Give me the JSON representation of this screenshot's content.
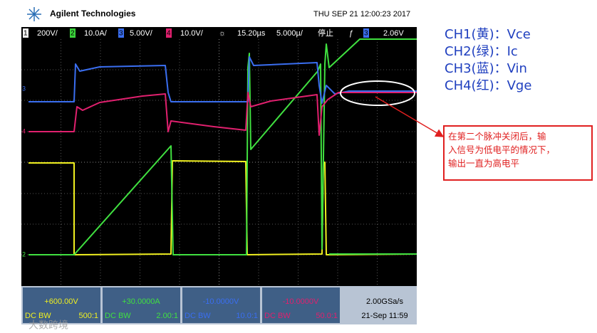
{
  "header": {
    "brand": "Agilent Technologies",
    "timestamp": "THU SEP 21 12:00:23 2017"
  },
  "toolbar": {
    "ch1": {
      "num": "1",
      "scale": "200V/"
    },
    "ch2": {
      "num": "2",
      "scale": "10.0A/"
    },
    "ch3": {
      "num": "3",
      "scale": "5.00V/"
    },
    "ch4": {
      "num": "4",
      "scale": "10.0V/"
    },
    "delay": "15.20µs",
    "timebase": "5.000µ/",
    "state": "停止",
    "trigger_symbol": "ƒ",
    "trigger_channel": "3",
    "trigger_level": "2.06V"
  },
  "channel_panels": [
    {
      "offset": "+600.00V",
      "coupling": "DC BW",
      "probe": "500:1"
    },
    {
      "offset": "+30.0000A",
      "coupling": "DC BW",
      "probe": "2.00:1"
    },
    {
      "offset": "-10.0000V",
      "coupling": "DC BW",
      "probe": "10.0:1"
    },
    {
      "offset": "-10.0000V",
      "coupling": "DC BW",
      "probe": "50.0:1"
    }
  ],
  "acquisition": {
    "rate": "2.00GSa/s",
    "date": "21-Sep 11:59"
  },
  "legend": [
    "CH1(黄)：Vce",
    "CH2(绿)：Ic",
    "CH3(蓝)：Vin",
    "CH4(红)：Vge"
  ],
  "note": [
    "在第二个脉冲关闭后，输",
    "入信号为低电平的情况下，",
    "输出一直为高电平"
  ],
  "watermark": "大数跨境"
}
